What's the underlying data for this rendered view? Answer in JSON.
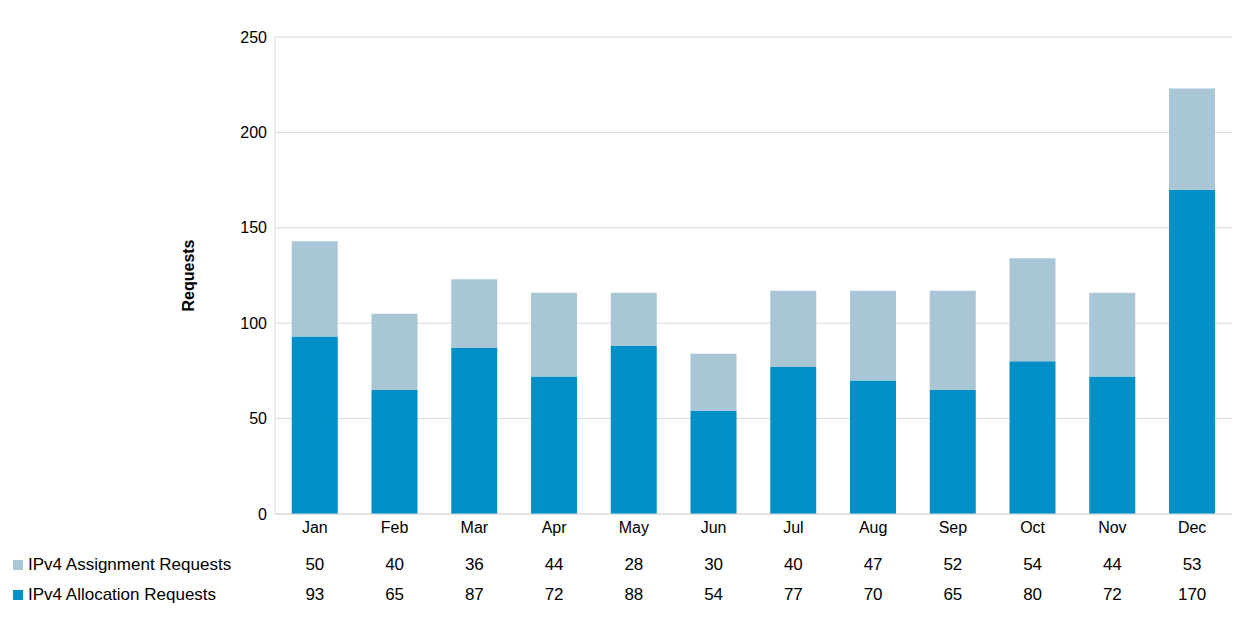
{
  "chart_data": {
    "type": "bar",
    "stacked": true,
    "y_label": "Requests",
    "categories": [
      "Jan",
      "Feb",
      "Mar",
      "Apr",
      "May",
      "Jun",
      "Jul",
      "Aug",
      "Sep",
      "Oct",
      "Nov",
      "Dec"
    ],
    "series": [
      {
        "name": "IPv4 Allocation Requests",
        "color": "#0090c5",
        "values": [
          93,
          65,
          87,
          72,
          88,
          54,
          77,
          70,
          65,
          80,
          72,
          170
        ]
      },
      {
        "name": "IPv4 Assignment Requests",
        "color": "#a9c6d6",
        "values": [
          50,
          40,
          36,
          44,
          28,
          30,
          40,
          47,
          52,
          54,
          44,
          53
        ]
      }
    ],
    "ylim": [
      0,
      250
    ],
    "yticks": [
      0,
      50,
      100,
      150,
      200,
      250
    ],
    "grid": true,
    "legend": "bottom"
  }
}
